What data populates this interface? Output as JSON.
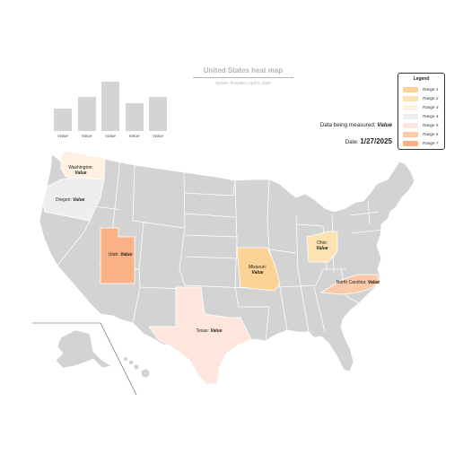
{
  "header": {
    "title": "United States heat map",
    "subtitle": "System Template | April 5, 2025"
  },
  "bar_chart": {
    "labels": [
      "Value",
      "Value",
      "Value",
      "Value",
      "Value"
    ],
    "values": [
      0.38,
      0.58,
      0.83,
      0.47,
      0.57
    ]
  },
  "legend": {
    "title": "Legend",
    "items": [
      {
        "label": "Range 1",
        "color": "#fcd397"
      },
      {
        "label": "Range 2",
        "color": "#fde2b2"
      },
      {
        "label": "Range 3",
        "color": "#fef1e2"
      },
      {
        "label": "Range 4",
        "color": "#eeeeee"
      },
      {
        "label": "Range 5",
        "color": "#fee6dc"
      },
      {
        "label": "Range 6",
        "color": "#fccaa8"
      },
      {
        "label": "Range 7",
        "color": "#fbb186"
      }
    ]
  },
  "info": {
    "measured_label": "Data being measured:",
    "measured_value": "Value",
    "date_label": "Date:",
    "date_value": "1/27/2025"
  },
  "states": {
    "washington": {
      "name": "Washington:",
      "value": "Value",
      "color": "#fef1e2"
    },
    "oregon": {
      "name": "Oregon:",
      "value": "Value",
      "color": "#eeeeee"
    },
    "utah": {
      "name": "Utah:",
      "value": "Value",
      "color": "#fbb186"
    },
    "missouri": {
      "name": "Missouri:",
      "value": "Value",
      "color": "#fcd397"
    },
    "ohio": {
      "name": "Ohio:",
      "value": "Value",
      "color": "#fde2b2"
    },
    "north_carolina": {
      "name": "North Carolina:",
      "value": "Value",
      "color": "#fccaa8"
    },
    "texas": {
      "name": "Texas:",
      "value": "Value",
      "color": "#fee6dc"
    }
  },
  "map_colors": {
    "base": "#d3d3d3",
    "border": "#ffffff"
  }
}
